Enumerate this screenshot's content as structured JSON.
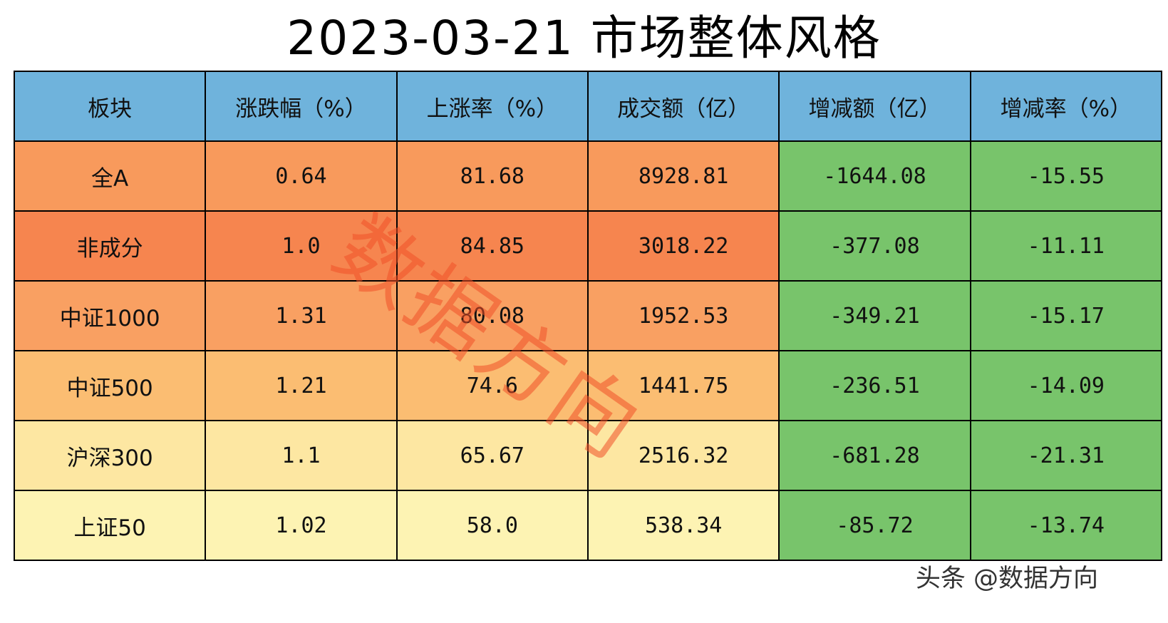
{
  "chart_data": {
    "type": "table",
    "title": "2023-03-21 市场整体风格",
    "columns": [
      "板块",
      "涨跌幅（%）",
      "上涨率（%）",
      "成交额（亿）",
      "增减额（亿）",
      "增减率（%）"
    ],
    "rows": [
      [
        "全A",
        "0.64",
        "81.68",
        "8928.81",
        "-1644.08",
        "-15.55"
      ],
      [
        "非成分",
        "1.0",
        "84.85",
        "3018.22",
        "-377.08",
        "-11.11"
      ],
      [
        "中证1000",
        "1.31",
        "80.08",
        "1952.53",
        "-349.21",
        "-15.17"
      ],
      [
        "中证500",
        "1.21",
        "74.6",
        "1441.75",
        "-236.51",
        "-14.09"
      ],
      [
        "沪深300",
        "1.1",
        "65.67",
        "2516.32",
        "-681.28",
        "-21.31"
      ],
      [
        "上证50",
        "1.02",
        "58.0",
        "538.34",
        "-85.72",
        "-13.74"
      ]
    ],
    "row_colors": [
      "#f89a5c",
      "#f6854f",
      "#f9a062",
      "#fbbd72",
      "#fde7a2",
      "#fdf3b3"
    ],
    "negative_color": "#78c46b",
    "header_color": "#6fb3dc"
  },
  "watermark": "数据方向",
  "footer": "头条 @数据方向"
}
